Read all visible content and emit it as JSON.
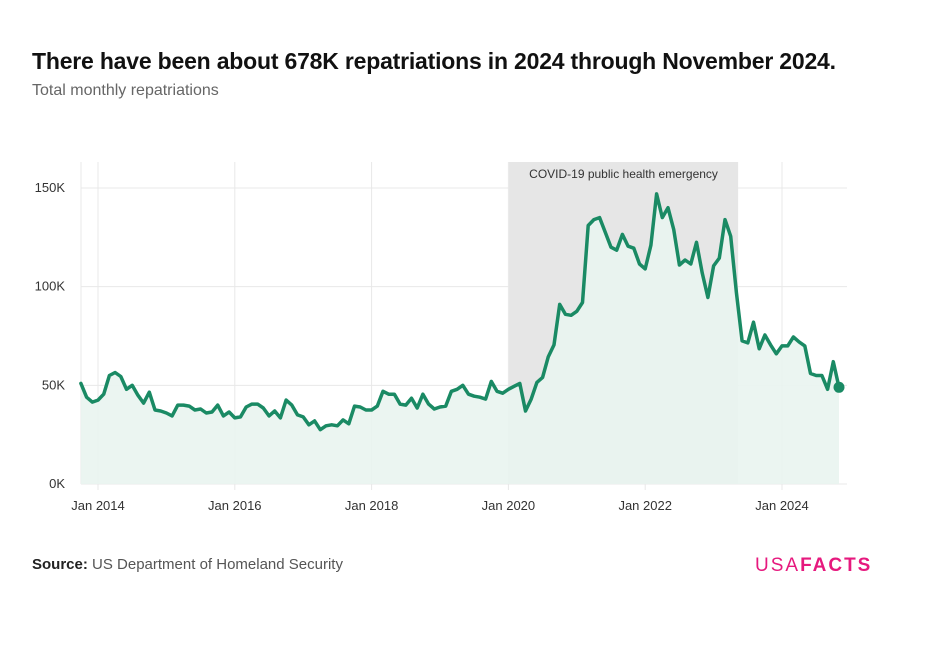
{
  "title": "There have been about 678K repatriations in 2024 through November 2024.",
  "subtitle": "Total monthly repatriations",
  "source_label": "Source:",
  "source_text": "US Department of Homeland Security",
  "logo": {
    "light": "USA",
    "bold": "FACTS"
  },
  "colors": {
    "line": "#1a8a64",
    "area": "#e9f4ef",
    "band": "#e6e6e6",
    "grid": "#e8e8e8"
  },
  "chart_data": {
    "type": "line",
    "ylabel": "",
    "xlabel": "",
    "ylim": [
      0,
      160000
    ],
    "xlim": [
      "2013-10",
      "2024-12"
    ],
    "y_ticks": [
      {
        "value": 0,
        "label": "0K"
      },
      {
        "value": 50000,
        "label": "50K"
      },
      {
        "value": 100000,
        "label": "100K"
      },
      {
        "value": 150000,
        "label": "150K"
      }
    ],
    "x_ticks": [
      {
        "date": "2014-01",
        "label": "Jan 2014"
      },
      {
        "date": "2016-01",
        "label": "Jan 2016"
      },
      {
        "date": "2018-01",
        "label": "Jan 2018"
      },
      {
        "date": "2020-01",
        "label": "Jan 2020"
      },
      {
        "date": "2022-01",
        "label": "Jan 2022"
      },
      {
        "date": "2024-01",
        "label": "Jan 2024"
      }
    ],
    "annotation": {
      "label": "COVID-19 public health emergency",
      "start": "2020-02",
      "end": "2023-05"
    },
    "series": [
      {
        "start": "2013-10",
        "values": [
          51000,
          44000,
          41500,
          42500,
          45500,
          55000,
          56500,
          54500,
          48000,
          50000,
          45000,
          41000,
          46500,
          37500,
          37000,
          36000,
          34500,
          40000,
          40000,
          39500,
          37500,
          38000,
          36000,
          36500,
          40000,
          34500,
          36500,
          33500,
          34000,
          39000,
          40500,
          40500,
          38500,
          34500,
          37000,
          33500,
          42500,
          40000,
          35000,
          34000,
          30000,
          32000,
          27500,
          29500,
          30000,
          29500,
          32500,
          30500,
          39500,
          39000,
          37500,
          37500,
          39500,
          47000,
          45500,
          45500,
          40500,
          40000,
          43500,
          38500,
          45500,
          40500,
          38000,
          39000,
          39500,
          47000,
          48000,
          50000,
          45500,
          44500,
          44000,
          43000,
          52000,
          47000,
          46000,
          48000,
          49500,
          51000,
          37000,
          43000,
          51500,
          54000,
          64500,
          70500,
          91000,
          86000,
          85500,
          87500,
          92000,
          131000,
          134000,
          135000,
          127500,
          120000,
          118500,
          126500,
          120500,
          119500,
          111500,
          109000,
          121000,
          147000,
          135000,
          140000,
          129000,
          111000,
          113500,
          111500,
          122500,
          107000,
          94500,
          110500,
          114500,
          134000,
          125500,
          97000,
          72500,
          71500,
          82000,
          68500,
          75500,
          70500,
          66000,
          70000,
          70000,
          74500,
          72000,
          70000,
          56000,
          55000,
          55000,
          48000,
          62000,
          49000
        ]
      }
    ],
    "highlight_last_point": true
  }
}
